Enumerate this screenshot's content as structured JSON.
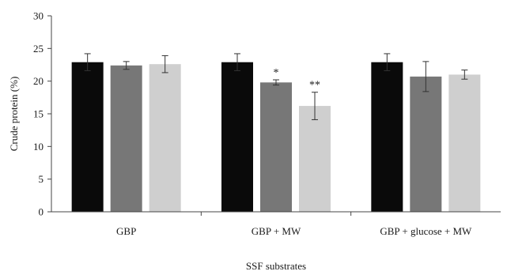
{
  "chart_data": {
    "type": "bar",
    "title": "",
    "xlabel": "SSF substrates",
    "ylabel": "Crude protein (%)",
    "ylim": [
      0,
      30
    ],
    "yticks": [
      0,
      5,
      10,
      15,
      20,
      25,
      30
    ],
    "grid": false,
    "legend": "none",
    "categories": [
      "GBP",
      "GBP + MW",
      "GBP + glucose + MW"
    ],
    "series": [
      {
        "color": "#0a0a0a",
        "values": [
          22.9,
          22.9,
          22.9
        ],
        "errors": [
          1.3,
          1.3,
          1.3
        ],
        "annotations": [
          "",
          "",
          ""
        ]
      },
      {
        "color": "#777777",
        "values": [
          22.4,
          19.8,
          20.7
        ],
        "errors": [
          0.6,
          0.4,
          2.3
        ],
        "annotations": [
          "",
          "*",
          ""
        ]
      },
      {
        "color": "#cfcfcf",
        "values": [
          22.6,
          16.2,
          21.0
        ],
        "errors": [
          1.3,
          2.1,
          0.7
        ],
        "annotations": [
          "",
          "**",
          ""
        ]
      }
    ]
  }
}
